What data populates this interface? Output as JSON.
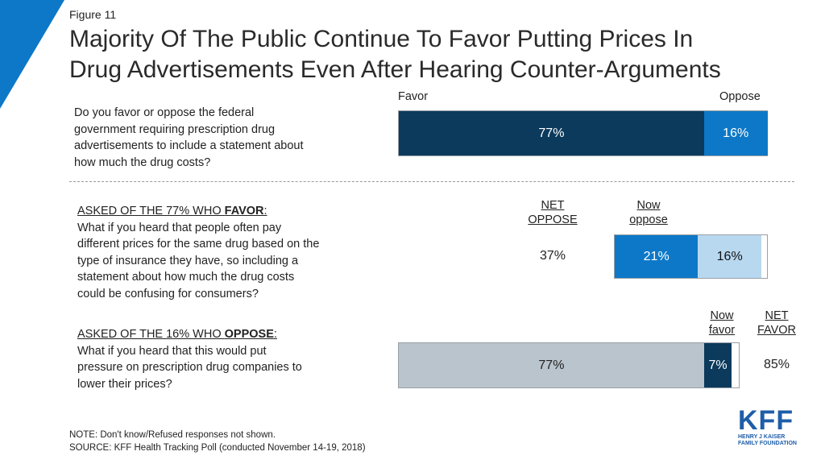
{
  "figure_label": "Figure 11",
  "title_line1": "Majority Of The Public Continue To Favor Putting Prices In",
  "title_line2": "Drug Advertisements Even After Hearing Counter-Arguments",
  "colors": {
    "dark_navy": "#0b3a5c",
    "medium_blue": "#0d78c7",
    "light_blue": "#b8d8f0",
    "gray": "#b9c4cc",
    "accent_corner": "#0d78c7"
  },
  "section1": {
    "question": [
      "Do you favor or oppose the federal",
      "government requiring prescription drug",
      "advertisements to include a statement about",
      "how much the drug costs?"
    ],
    "label_favor": "Favor",
    "label_oppose": "Oppose"
  },
  "section2": {
    "prefix": "ASKED OF THE 77% WHO ",
    "emph": "FAVOR",
    "suffix": ":",
    "question": [
      "What if you heard that people often pay",
      "different prices for the same drug based on the",
      "type of insurance they have, so including a",
      "statement about how much the drug costs",
      "could be confusing for consumers?"
    ],
    "net_label_1": "NET",
    "net_label_2": "OPPOSE",
    "net_value": "37%",
    "now_label_1": "Now",
    "now_label_2": "oppose"
  },
  "section3": {
    "prefix": "ASKED OF THE 16% WHO ",
    "emph": "OPPOSE",
    "suffix": ":",
    "question": [
      "What if you heard that this would put",
      "pressure on prescription drug companies to",
      "lower their prices?"
    ],
    "now_label_1": "Now",
    "now_label_2": "favor",
    "net_label_1": "NET",
    "net_label_2": "FAVOR",
    "net_value": "85%"
  },
  "chart_data": [
    {
      "type": "bar",
      "orientation": "horizontal",
      "stacked": true,
      "categories": [
        "Do you favor or oppose the federal government requiring prescription drug advertisements to include a statement about how much the drug costs?"
      ],
      "series": [
        {
          "name": "Favor",
          "values": [
            77
          ],
          "label": "77%"
        },
        {
          "name": "Oppose",
          "values": [
            16
          ],
          "label": "16%"
        }
      ]
    },
    {
      "type": "bar",
      "orientation": "horizontal",
      "stacked": true,
      "categories": [
        "ASKED OF THE 77% WHO FAVOR"
      ],
      "series": [
        {
          "name": "Now oppose",
          "values": [
            21
          ],
          "label": "21%"
        },
        {
          "name": "",
          "values": [
            16
          ],
          "label": "16%"
        }
      ],
      "net": {
        "name": "NET OPPOSE",
        "value": 37
      }
    },
    {
      "type": "bar",
      "orientation": "horizontal",
      "stacked": true,
      "categories": [
        "ASKED OF THE 16% WHO OPPOSE"
      ],
      "series": [
        {
          "name": "",
          "values": [
            77
          ],
          "label": "77%"
        },
        {
          "name": "Now favor",
          "values": [
            7
          ],
          "label": "7%"
        }
      ],
      "net": {
        "name": "NET FAVOR",
        "value": 85
      }
    }
  ],
  "notes": {
    "note": "NOTE: Don't know/Refused responses not shown.",
    "source": "SOURCE: KFF Health Tracking Poll (conducted November 14-19, 2018)"
  },
  "logo": {
    "mark": "KFF",
    "line1": "HENRY J KAISER",
    "line2": "FAMILY FOUNDATION"
  }
}
